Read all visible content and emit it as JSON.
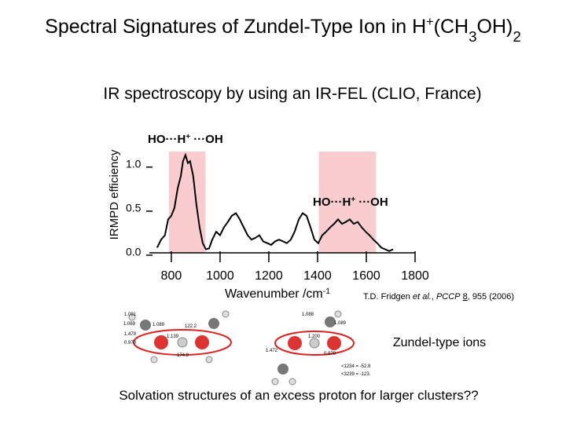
{
  "chart_data": {
    "type": "line",
    "title": [
      {
        "text": "Spectral Signatures of Zundel-Type Ion in H"
      },
      {
        "text": "+",
        "sup": true
      },
      {
        "text": "(CH"
      },
      {
        "text": "3",
        "sub": true
      },
      {
        "text": "OH)"
      },
      {
        "text": "2",
        "sub": true
      }
    ],
    "subtitle": "IR spectroscopy by using an IR-FEL (CLIO, France)",
    "ylabel": "IRMPD efficiency",
    "xlabel": [
      {
        "text": "Wavenumber /cm"
      },
      {
        "text": "-1",
        "sup": true
      }
    ],
    "annotations": [
      [
        {
          "text": "HO···H"
        },
        {
          "text": "+",
          "sup": true
        },
        {
          "text": " ···OH"
        }
      ],
      [
        {
          "text": "HO···H"
        },
        {
          "text": "+",
          "sup": true
        },
        {
          "text": " ···OH"
        }
      ]
    ],
    "citation": [
      {
        "text": "T.D. Fridgen "
      },
      {
        "text": "et al.",
        "italic": true
      },
      {
        "text": ", "
      },
      {
        "text": "PCCP",
        "italic": true
      },
      {
        "text": " "
      },
      {
        "text": "8",
        "underline": true
      },
      {
        "text": ", 955 (2006)"
      }
    ],
    "caption": "Zundel-type ions",
    "footer": "Solvation structures of an excess proton for larger clusters??",
    "molecule_labels": [
      "1.091",
      "1.069",
      "1.089",
      "122.2",
      "1.139",
      "1.479",
      "0.970",
      "174.9",
      "1.088",
      "1.089",
      "1.200",
      "1.472",
      "0.970",
      "<1234 = -52.8",
      "<3239 = -123."
    ],
    "bands": [
      [
        790,
        940
      ],
      [
        1405,
        1640
      ]
    ],
    "band_color": "#f9cdd0",
    "series": [
      {
        "color": "#000000",
        "x": [
          742,
          758,
          774,
          787,
          800,
          813,
          826,
          839,
          848,
          858,
          868,
          877,
          890,
          903,
          916,
          929,
          942,
          955,
          968,
          984,
          1000,
          1016,
          1032,
          1048,
          1065,
          1081,
          1097,
          1113,
          1129,
          1145,
          1161,
          1177,
          1194,
          1210,
          1226,
          1242,
          1258,
          1274,
          1290,
          1306,
          1323,
          1339,
          1355,
          1371,
          1387,
          1403,
          1419,
          1435,
          1452,
          1468,
          1484,
          1500,
          1516,
          1532,
          1548,
          1565,
          1581,
          1597,
          1613,
          1629,
          1645,
          1661,
          1677,
          1694,
          1710
        ],
        "values": [
          0.06,
          0.15,
          0.2,
          0.38,
          0.42,
          0.51,
          0.73,
          0.87,
          1.04,
          1.11,
          1.02,
          1.04,
          0.87,
          0.55,
          0.29,
          0.11,
          0.04,
          0.05,
          0.15,
          0.24,
          0.2,
          0.29,
          0.35,
          0.42,
          0.45,
          0.38,
          0.29,
          0.2,
          0.15,
          0.17,
          0.2,
          0.13,
          0.11,
          0.09,
          0.13,
          0.15,
          0.13,
          0.11,
          0.15,
          0.24,
          0.38,
          0.45,
          0.42,
          0.29,
          0.15,
          0.11,
          0.2,
          0.24,
          0.29,
          0.33,
          0.38,
          0.33,
          0.35,
          0.38,
          0.33,
          0.35,
          0.29,
          0.24,
          0.2,
          0.15,
          0.11,
          0.06,
          0.04,
          0.02,
          0.04
        ]
      }
    ],
    "xlim": [
      710,
      1800
    ],
    "xticks": [
      800,
      1000,
      1200,
      1400,
      1600,
      1800
    ],
    "ylim": [
      0,
      1.15
    ],
    "yticks": [
      {
        "value": 0,
        "label": "0.0"
      },
      0.5,
      {
        "value": 1,
        "label": "1.0"
      }
    ]
  }
}
